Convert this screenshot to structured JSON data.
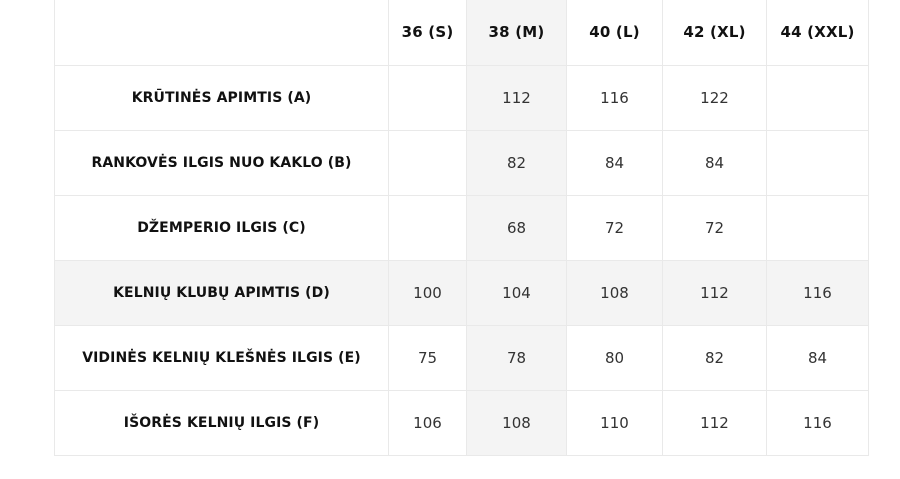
{
  "table": {
    "corner": "",
    "headers": [
      "36 (S)",
      "38 (M)",
      "40 (L)",
      "42 (XL)",
      "44 (XXL)"
    ],
    "rows": [
      {
        "label": "KRŪTINĖS APIMTIS (A)",
        "values": [
          "",
          "112",
          "116",
          "122",
          ""
        ]
      },
      {
        "label": "RANKOVĖS ILGIS NUO KAKLO (B)",
        "values": [
          "",
          "82",
          "84",
          "84",
          ""
        ]
      },
      {
        "label": "DŽEMPERIO ILGIS (C)",
        "values": [
          "",
          "68",
          "72",
          "72",
          ""
        ]
      },
      {
        "label": "KELNIŲ KLUBŲ APIMTIS (D)",
        "values": [
          "100",
          "104",
          "108",
          "112",
          "116"
        ]
      },
      {
        "label": "VIDINĖS KELNIŲ KLEŠNĖS ILGIS (E)",
        "values": [
          "75",
          "78",
          "80",
          "82",
          "84"
        ]
      },
      {
        "label": "IŠORĖS KELNIŲ ILGIS (F)",
        "values": [
          "106",
          "108",
          "110",
          "112",
          "116"
        ]
      }
    ]
  },
  "highlight": {
    "column_header": "38 (M)",
    "row_label": "KELNIŲ KLUBŲ APIMTIS (D)",
    "color": "#f4f4f4"
  }
}
